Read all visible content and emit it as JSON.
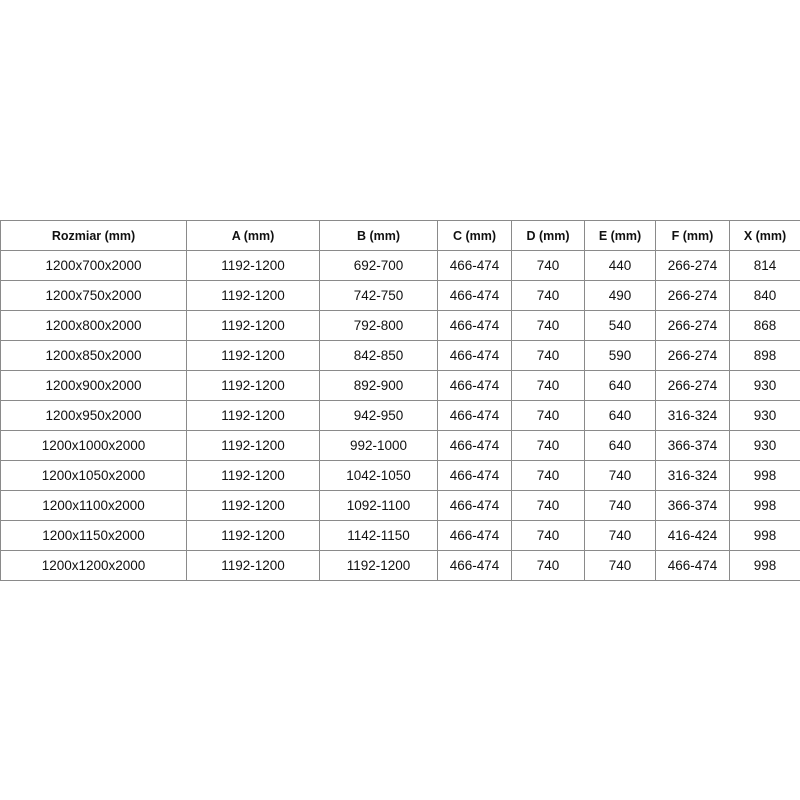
{
  "table": {
    "headers": [
      "Rozmiar (mm)",
      "A (mm)",
      "B (mm)",
      "C (mm)",
      "D (mm)",
      "E (mm)",
      "F (mm)",
      "X (mm)"
    ],
    "rows": [
      [
        "1200x700x2000",
        "1192-1200",
        "692-700",
        "466-474",
        "740",
        "440",
        "266-274",
        "814"
      ],
      [
        "1200x750x2000",
        "1192-1200",
        "742-750",
        "466-474",
        "740",
        "490",
        "266-274",
        "840"
      ],
      [
        "1200x800x2000",
        "1192-1200",
        "792-800",
        "466-474",
        "740",
        "540",
        "266-274",
        "868"
      ],
      [
        "1200x850x2000",
        "1192-1200",
        "842-850",
        "466-474",
        "740",
        "590",
        "266-274",
        "898"
      ],
      [
        "1200x900x2000",
        "1192-1200",
        "892-900",
        "466-474",
        "740",
        "640",
        "266-274",
        "930"
      ],
      [
        "1200x950x2000",
        "1192-1200",
        "942-950",
        "466-474",
        "740",
        "640",
        "316-324",
        "930"
      ],
      [
        "1200x1000x2000",
        "1192-1200",
        "992-1000",
        "466-474",
        "740",
        "640",
        "366-374",
        "930"
      ],
      [
        "1200x1050x2000",
        "1192-1200",
        "1042-1050",
        "466-474",
        "740",
        "740",
        "316-324",
        "998"
      ],
      [
        "1200x1100x2000",
        "1192-1200",
        "1092-1100",
        "466-474",
        "740",
        "740",
        "366-374",
        "998"
      ],
      [
        "1200x1150x2000",
        "1192-1200",
        "1142-1150",
        "466-474",
        "740",
        "740",
        "416-424",
        "998"
      ],
      [
        "1200x1200x2000",
        "1192-1200",
        "1192-1200",
        "466-474",
        "740",
        "740",
        "466-474",
        "998"
      ]
    ]
  }
}
